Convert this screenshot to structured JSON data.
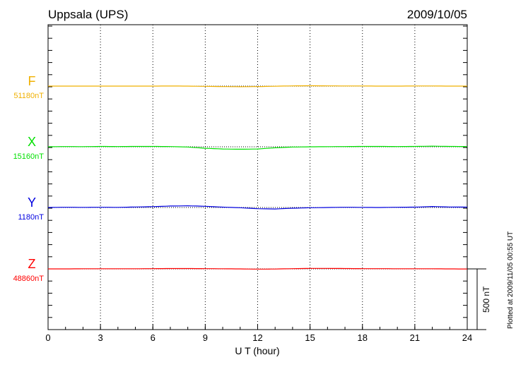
{
  "chart_data": {
    "type": "line",
    "title": "Uppsala (UPS)",
    "date": "2009/10/05",
    "xlabel": "U T (hour)",
    "xlim": [
      0,
      24
    ],
    "xticks": [
      0,
      3,
      6,
      9,
      12,
      15,
      18,
      21,
      24
    ],
    "grid": "vertical dotted lines every 3 hours; dotted baseline per component",
    "scale_bar": "500 nT",
    "scale_bar_nT": 500,
    "plotted_note": "Plotted at 2009/11/05 00:55 UT",
    "x": [
      0,
      1,
      2,
      3,
      4,
      5,
      6,
      7,
      8,
      9,
      10,
      11,
      12,
      13,
      14,
      15,
      16,
      17,
      18,
      19,
      20,
      21,
      22,
      23,
      24
    ],
    "series": [
      {
        "name": "F",
        "baseline_label": "51180nT",
        "color": "#f0b000",
        "values": [
          0,
          0,
          0,
          0,
          0,
          0,
          0,
          1,
          0,
          -2,
          -4,
          -5,
          -4,
          -1,
          2,
          3,
          2,
          1,
          1,
          0,
          0,
          1,
          1,
          0,
          0
        ]
      },
      {
        "name": "X",
        "baseline_label": "15160nT",
        "color": "#00e000",
        "values": [
          0,
          2,
          1,
          3,
          2,
          3,
          3,
          2,
          -2,
          -12,
          -18,
          -20,
          -18,
          -8,
          -2,
          0,
          1,
          2,
          3,
          3,
          2,
          3,
          5,
          3,
          2
        ]
      },
      {
        "name": "Y",
        "baseline_label": "1180nT",
        "color": "#0000e0",
        "values": [
          0,
          2,
          1,
          2,
          1,
          4,
          7,
          12,
          14,
          10,
          3,
          -2,
          -10,
          -12,
          -6,
          -2,
          0,
          2,
          1,
          0,
          2,
          3,
          8,
          4,
          3
        ]
      },
      {
        "name": "Z",
        "baseline_label": "48860nT",
        "color": "#ff0000",
        "values": [
          0,
          0,
          1,
          1,
          1,
          1,
          2,
          3,
          3,
          2,
          1,
          0,
          -2,
          -1,
          2,
          4,
          4,
          3,
          2,
          2,
          1,
          1,
          1,
          0,
          -1
        ]
      }
    ]
  }
}
